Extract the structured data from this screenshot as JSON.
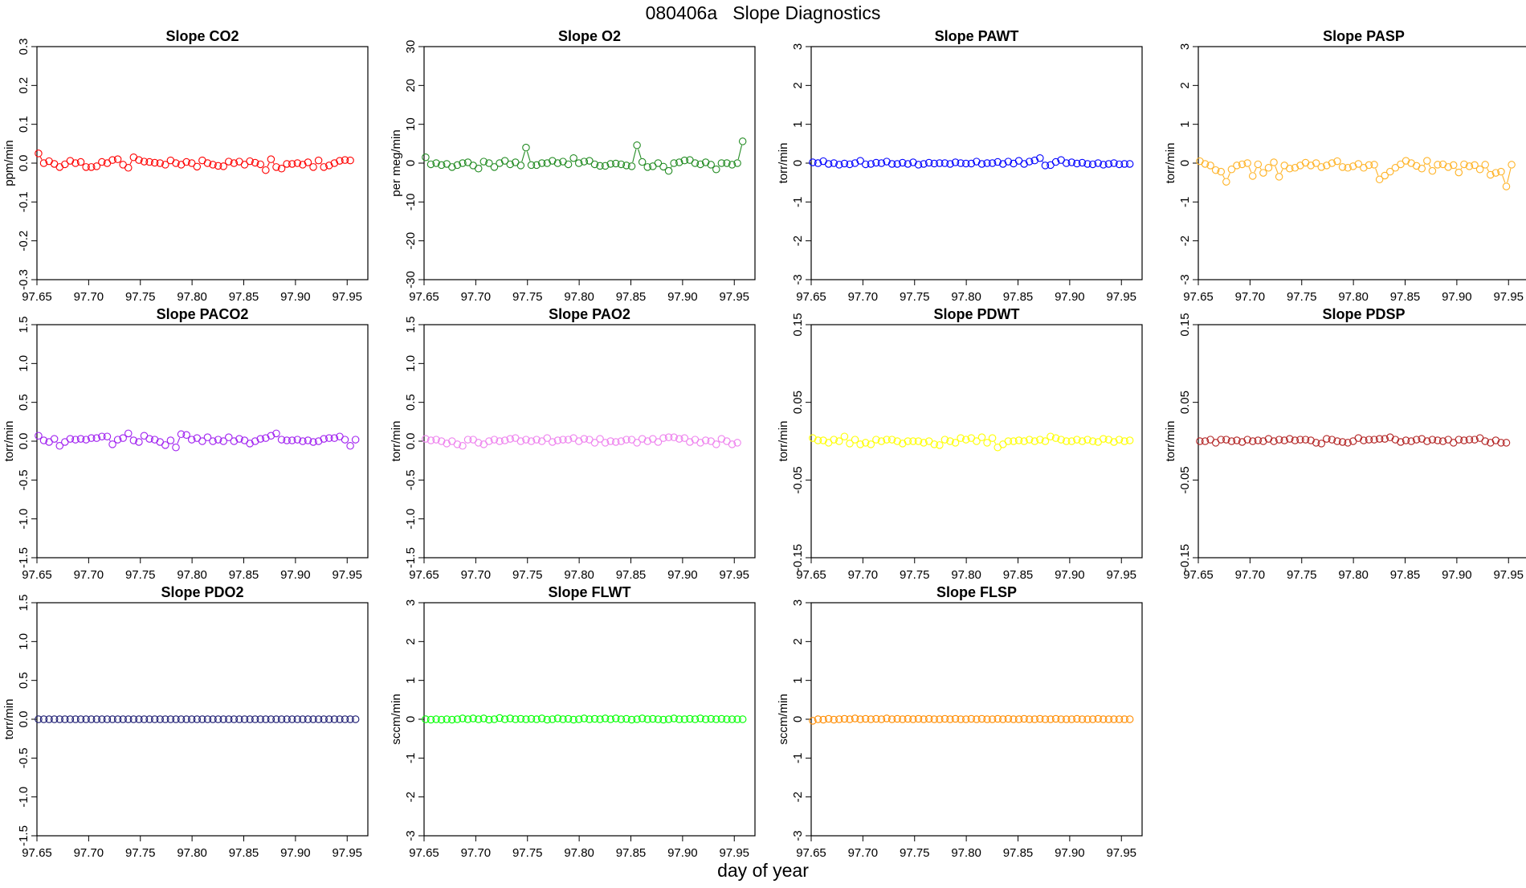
{
  "title": "080406a   Slope Diagnostics",
  "xlabel": "day of year",
  "x_ticks": [
    "97.65",
    "97.70",
    "97.75",
    "97.80",
    "97.85",
    "97.90",
    "97.95"
  ],
  "chart_data": [
    {
      "type": "scatter",
      "title": "Slope CO2",
      "ylabel": "ppm/min",
      "color": "#ff0000",
      "xlim": [
        97.65,
        97.97
      ],
      "ylim": [
        -0.3,
        0.3
      ],
      "y_ticks": [
        "-0.3",
        "-0.2",
        "-0.1",
        "0.0",
        "0.1",
        "0.2",
        "0.3"
      ],
      "x_start": 97.6515,
      "x_step": 0.00511,
      "y": [
        0.025,
        0.0,
        0.005,
        -0.002,
        -0.01,
        -0.003,
        0.006,
        0.0,
        0.003,
        -0.01,
        -0.01,
        -0.008,
        0.003,
        0.0,
        0.008,
        0.01,
        -0.004,
        -0.012,
        0.015,
        0.008,
        0.004,
        0.003,
        0.001,
        0.0,
        -0.004,
        0.007,
        0.0,
        -0.004,
        0.003,
        0.0,
        -0.009,
        0.007,
        0.0,
        -0.004,
        -0.007,
        -0.008,
        0.004,
        0.0,
        0.004,
        -0.004,
        0.005,
        0.001,
        -0.003,
        -0.018,
        0.01,
        -0.01,
        -0.014,
        -0.002,
        -0.002,
        0.0,
        -0.004,
        0.002,
        -0.01,
        0.007,
        -0.01,
        -0.006,
        0.0,
        0.006,
        0.008,
        0.007
      ],
      "gaps": []
    },
    {
      "type": "scatter",
      "title": "Slope O2",
      "ylabel": "per meg/min",
      "color": "#228b22",
      "xlim": [
        97.65,
        97.97
      ],
      "ylim": [
        -30,
        30
      ],
      "y_ticks": [
        "-30",
        "-20",
        "-10",
        "0",
        "10",
        "20",
        "30"
      ],
      "x_start": 97.6515,
      "x_step": 0.00511,
      "y": [
        1.5,
        -0.3,
        0.0,
        -0.5,
        -0.2,
        -1.0,
        -0.5,
        0.0,
        0.2,
        -0.6,
        -1.4,
        0.4,
        0.0,
        -1.0,
        0.0,
        0.6,
        -0.3,
        0.2,
        -0.6,
        4.0,
        -0.5,
        -0.5,
        0.0,
        0.0,
        0.6,
        0.0,
        0.4,
        -0.3,
        1.3,
        0.0,
        0.4,
        0.6,
        -0.3,
        -0.7,
        -0.7,
        -0.2,
        -0.1,
        -0.3,
        -0.6,
        -0.8,
        4.6,
        0.3,
        -1.0,
        -0.8,
        0.0,
        -0.9,
        -2.0,
        0.0,
        0.2,
        0.7,
        0.8,
        0.0,
        -0.3,
        0.2,
        -0.4,
        -1.6,
        0.0,
        0.0,
        -0.4,
        0.0,
        5.6
      ],
      "gaps": [
        19,
        40,
        60
      ]
    },
    {
      "type": "scatter",
      "title": "Slope PAWT",
      "ylabel": "torr/min",
      "color": "#0000ff",
      "xlim": [
        97.65,
        97.97
      ],
      "ylim": [
        -3,
        3
      ],
      "y_ticks": [
        "-3",
        "-2",
        "-1",
        "0",
        "1",
        "2",
        "3"
      ],
      "x_start": 97.6515,
      "x_step": 0.00511,
      "y": [
        0.02,
        0.0,
        0.05,
        -0.02,
        0.0,
        -0.04,
        -0.01,
        -0.03,
        0.0,
        0.06,
        -0.03,
        -0.02,
        0.01,
        0.0,
        0.04,
        -0.02,
        -0.02,
        0.01,
        -0.02,
        0.02,
        -0.04,
        -0.02,
        0.01,
        -0.01,
        0.0,
        0.0,
        -0.02,
        0.02,
        0.0,
        -0.01,
        -0.01,
        0.04,
        -0.02,
        0.0,
        0.0,
        0.03,
        -0.02,
        0.04,
        -0.01,
        0.06,
        -0.02,
        0.04,
        0.07,
        0.13,
        -0.06,
        -0.05,
        0.03,
        0.08,
        0.0,
        0.02,
        -0.01,
        0.01,
        -0.02,
        -0.03,
        0.0,
        -0.04,
        -0.02,
        0.0,
        -0.03,
        -0.02,
        -0.02
      ],
      "gaps": []
    },
    {
      "type": "scatter",
      "title": "Slope PASP",
      "ylabel": "torr/min",
      "color": "#ffb326",
      "xlim": [
        97.65,
        97.97
      ],
      "ylim": [
        -3,
        3
      ],
      "y_ticks": [
        "-3",
        "-2",
        "-1",
        "0",
        "1",
        "2",
        "3"
      ],
      "x_start": 97.6515,
      "x_step": 0.00511,
      "y": [
        0.05,
        -0.02,
        -0.06,
        -0.18,
        -0.22,
        -0.48,
        -0.16,
        -0.06,
        -0.03,
        0.0,
        -0.33,
        -0.03,
        -0.25,
        -0.12,
        0.02,
        -0.35,
        -0.06,
        -0.14,
        -0.12,
        -0.06,
        0.01,
        -0.06,
        0.0,
        -0.1,
        -0.06,
        0.0,
        0.05,
        -0.1,
        -0.12,
        -0.08,
        -0.02,
        -0.12,
        -0.05,
        -0.04,
        -0.42,
        -0.32,
        -0.22,
        -0.12,
        -0.03,
        0.06,
        0.0,
        -0.07,
        -0.14,
        0.06,
        -0.2,
        -0.04,
        -0.03,
        -0.1,
        -0.05,
        -0.24,
        -0.03,
        -0.08,
        -0.05,
        -0.16,
        -0.04,
        -0.3,
        -0.25,
        -0.22,
        -0.6,
        -0.04
      ],
      "gaps": [
        58
      ]
    },
    {
      "type": "scatter",
      "title": "Slope PACO2",
      "ylabel": "torr/min",
      "color": "#a020f0",
      "xlim": [
        97.65,
        97.97
      ],
      "ylim": [
        -1.5,
        1.5
      ],
      "y_ticks": [
        "-1.5",
        "-1.0",
        "-0.5",
        "0.0",
        "0.5",
        "1.0",
        "1.5"
      ],
      "x_start": 97.6515,
      "x_step": 0.00511,
      "y": [
        0.07,
        0.01,
        -0.01,
        0.03,
        -0.06,
        -0.01,
        0.03,
        0.02,
        0.03,
        0.02,
        0.04,
        0.04,
        0.06,
        0.06,
        -0.04,
        0.02,
        0.04,
        0.1,
        0.01,
        -0.01,
        0.07,
        0.03,
        0.02,
        -0.01,
        -0.05,
        0.01,
        -0.08,
        0.09,
        0.08,
        0.02,
        0.04,
        0.0,
        0.05,
        0.0,
        0.02,
        0.0,
        0.05,
        0.0,
        0.03,
        0.01,
        -0.03,
        0.0,
        0.03,
        0.04,
        0.07,
        0.1,
        0.02,
        0.01,
        0.01,
        0.02,
        0.0,
        0.01,
        -0.01,
        0.0,
        0.03,
        0.04,
        0.04,
        0.06,
        0.02,
        -0.06,
        0.02
      ],
      "gaps": []
    },
    {
      "type": "scatter",
      "title": "Slope PAO2",
      "ylabel": "torr/min",
      "color": "#ee82ee",
      "xlim": [
        97.65,
        97.97
      ],
      "ylim": [
        -1.5,
        1.5
      ],
      "y_ticks": [
        "-1.5",
        "-1.0",
        "-0.5",
        "0.0",
        "0.5",
        "1.0",
        "1.5"
      ],
      "x_start": 97.6515,
      "x_step": 0.00511,
      "y": [
        0.03,
        0.01,
        0.02,
        0.0,
        -0.03,
        0.0,
        -0.04,
        -0.06,
        0.02,
        0.02,
        -0.02,
        -0.04,
        0.0,
        0.02,
        0.0,
        0.01,
        0.03,
        0.04,
        0.0,
        0.02,
        0.0,
        0.02,
        0.0,
        0.04,
        -0.01,
        0.01,
        0.02,
        0.02,
        0.04,
        0.0,
        0.03,
        0.02,
        -0.02,
        0.03,
        -0.02,
        0.0,
        -0.01,
        0.0,
        0.02,
        0.02,
        -0.02,
        0.03,
        0.0,
        0.03,
        -0.01,
        0.04,
        0.05,
        0.05,
        0.03,
        0.04,
        -0.01,
        0.02,
        -0.02,
        0.01,
        0.0,
        -0.04,
        0.03,
        0.0,
        -0.04,
        -0.02
      ],
      "gaps": []
    },
    {
      "type": "scatter",
      "title": "Slope PDWT",
      "ylabel": "torr/min",
      "color": "#ffff00",
      "xlim": [
        97.65,
        97.97
      ],
      "ylim": [
        -0.15,
        0.15
      ],
      "y_ticks": [
        "-0.15",
        "-0.05",
        "0.05",
        "0.15"
      ],
      "x_start": 97.6515,
      "x_step": 0.00511,
      "y": [
        0.004,
        0.001,
        0.001,
        -0.002,
        0.002,
        0.0,
        0.006,
        -0.003,
        0.002,
        -0.004,
        -0.002,
        -0.004,
        0.002,
        0.0,
        0.002,
        0.002,
        0.0,
        -0.003,
        0.0,
        0.0,
        0.0,
        -0.002,
        0.0,
        -0.004,
        -0.005,
        0.002,
        0.0,
        -0.002,
        0.004,
        0.002,
        0.004,
        0.0,
        0.005,
        -0.002,
        0.004,
        -0.008,
        -0.004,
        0.0,
        0.0,
        0.001,
        0.0,
        0.002,
        0.0,
        0.002,
        0.0,
        0.006,
        0.004,
        0.002,
        0.0,
        0.0,
        0.002,
        0.0,
        0.002,
        0.0,
        -0.001,
        0.003,
        0.002,
        -0.001,
        0.002,
        0.0,
        0.001
      ],
      "gaps": []
    },
    {
      "type": "scatter",
      "title": "Slope PDSP",
      "ylabel": "torr/min",
      "color": "#b22222",
      "xlim": [
        97.65,
        97.97
      ],
      "ylim": [
        -0.15,
        0.15
      ],
      "y_ticks": [
        "-0.15",
        "-0.05",
        "0.05",
        "0.15"
      ],
      "x_start": 97.6515,
      "x_step": 0.00511,
      "y": [
        0.0,
        0.0,
        0.002,
        -0.002,
        0.002,
        0.002,
        0.0,
        0.001,
        -0.001,
        0.002,
        0.0,
        0.001,
        0.0,
        0.003,
        0.0,
        0.002,
        0.001,
        0.003,
        0.001,
        0.002,
        0.002,
        0.001,
        -0.002,
        -0.003,
        0.003,
        0.002,
        0.0,
        -0.001,
        -0.002,
        0.0,
        0.004,
        0.001,
        0.002,
        0.002,
        0.003,
        0.003,
        0.005,
        0.002,
        -0.001,
        0.001,
        0.0,
        0.002,
        0.003,
        0.0,
        0.002,
        0.001,
        0.0,
        0.002,
        -0.002,
        0.002,
        0.001,
        0.002,
        0.002,
        0.004,
        0.0,
        -0.002,
        0.001,
        -0.002,
        -0.002
      ],
      "gaps": []
    },
    {
      "type": "scatter",
      "title": "Slope PDO2",
      "ylabel": "torr/min",
      "color": "#191970",
      "xlim": [
        97.65,
        97.97
      ],
      "ylim": [
        -1.5,
        1.5
      ],
      "y_ticks": [
        "-1.5",
        "-1.0",
        "-0.5",
        "0.0",
        "0.5",
        "1.0",
        "1.5"
      ],
      "x_start": 97.6515,
      "x_step": 0.00511,
      "y": [
        0.0,
        0.0,
        0.0,
        0.0,
        0.0,
        0.0,
        0.0,
        0.0,
        0.0,
        0.0,
        0.0,
        0.0,
        0.0,
        0.0,
        0.0,
        0.0,
        0.0,
        0.0,
        0.0,
        0.0,
        0.0,
        0.0,
        0.0,
        0.0,
        0.0,
        0.0,
        0.0,
        0.0,
        0.0,
        0.0,
        0.0,
        0.0,
        0.0,
        0.0,
        0.0,
        0.0,
        0.0,
        0.0,
        0.0,
        0.0,
        0.0,
        0.0,
        0.0,
        0.0,
        0.0,
        0.0,
        0.0,
        0.0,
        0.0,
        0.0,
        0.0,
        0.0,
        0.0,
        0.0,
        0.0,
        0.0,
        0.0,
        0.0,
        0.0,
        0.0,
        0.0
      ],
      "gaps": []
    },
    {
      "type": "scatter",
      "title": "Slope FLWT",
      "ylabel": "sccm/min",
      "color": "#00ff00",
      "xlim": [
        97.65,
        97.97
      ],
      "ylim": [
        -3,
        3
      ],
      "y_ticks": [
        "-3",
        "-2",
        "-1",
        "0",
        "1",
        "2",
        "3"
      ],
      "x_start": 97.6515,
      "x_step": 0.00511,
      "y": [
        0.0,
        -0.01,
        0.0,
        -0.01,
        0.0,
        -0.01,
        0.0,
        0.02,
        0.0,
        0.02,
        0.0,
        0.02,
        -0.01,
        0.0,
        0.03,
        0.0,
        0.02,
        0.0,
        0.01,
        0.0,
        0.01,
        0.0,
        0.02,
        -0.01,
        0.0,
        0.02,
        0.0,
        0.01,
        -0.01,
        0.0,
        0.02,
        0.0,
        0.01,
        0.0,
        0.02,
        0.0,
        0.02,
        0.0,
        0.01,
        -0.01,
        0.0,
        0.02,
        0.0,
        0.01,
        0.0,
        -0.01,
        0.0,
        0.02,
        0.0,
        0.0,
        0.01,
        0.0,
        0.02,
        0.0,
        0.01,
        0.0,
        0.01,
        0.0,
        0.0,
        0.0,
        0.0
      ],
      "gaps": []
    },
    {
      "type": "scatter",
      "title": "Slope FLSP",
      "ylabel": "sccm/min",
      "color": "#ff8c00",
      "xlim": [
        97.65,
        97.97
      ],
      "ylim": [
        -3,
        3
      ],
      "y_ticks": [
        "-3",
        "-2",
        "-1",
        "0",
        "1",
        "2",
        "3"
      ],
      "x_start": 97.6515,
      "x_step": 0.00511,
      "y": [
        -0.04,
        0.0,
        -0.01,
        0.01,
        -0.01,
        0.0,
        0.01,
        0.0,
        0.02,
        0.0,
        0.01,
        0.0,
        0.01,
        0.0,
        0.02,
        0.0,
        0.01,
        0.0,
        0.01,
        0.0,
        0.01,
        0.0,
        0.01,
        0.0,
        0.0,
        0.01,
        0.0,
        0.01,
        0.0,
        0.0,
        0.01,
        0.0,
        0.01,
        0.0,
        0.0,
        0.01,
        0.0,
        0.01,
        0.0,
        0.0,
        0.01,
        0.0,
        0.0,
        0.01,
        0.0,
        0.0,
        0.01,
        0.0,
        0.0,
        0.0,
        0.01,
        0.0,
        0.0,
        0.0,
        0.01,
        0.0,
        0.0,
        0.0,
        0.0,
        0.0,
        0.0
      ],
      "gaps": []
    }
  ]
}
